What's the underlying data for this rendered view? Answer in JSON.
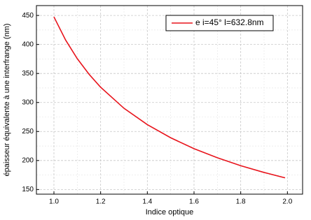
{
  "chart_data": {
    "type": "line",
    "x_label": "Indice optique",
    "y_label": "épaisseur équivalente à une interfrange (nm)",
    "x": [
      1.0,
      1.05,
      1.1,
      1.15,
      1.2,
      1.3,
      1.4,
      1.5,
      1.6,
      1.7,
      1.8,
      1.9,
      1.99
    ],
    "series": [
      {
        "name": "e i=45° l=632.8nm",
        "color": "#e8141c",
        "values": [
          447.5,
          407.6,
          375.5,
          348.9,
          326.3,
          290.0,
          261.9,
          239.2,
          220.4,
          204.7,
          191.1,
          179.4,
          170.1
        ]
      }
    ],
    "xlim": [
      0.925,
      2.065
    ],
    "xticks": [
      {
        "value": 1,
        "label": "1.0"
      },
      1.2,
      1.4,
      1.6,
      1.8,
      {
        "value": 2,
        "label": "2.0"
      }
    ],
    "ylim": [
      142,
      467
    ],
    "yticks": [
      150,
      200,
      250,
      300,
      350,
      400,
      450
    ],
    "grid": true,
    "minor_grid": true,
    "legend": "upper right"
  }
}
